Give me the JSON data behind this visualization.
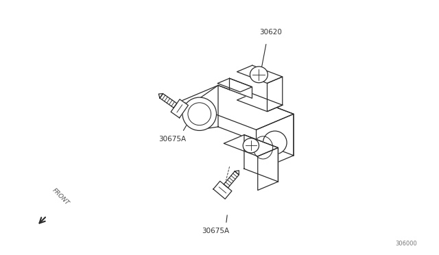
{
  "bg_color": "#ffffff",
  "line_color": "#2a2a2a",
  "label_color": "#333333",
  "part_30620": "30620",
  "part_30675A_left": "30675A",
  "part_30675A_bot": "30675A",
  "diagram_code": "306000",
  "front_label": "FRONT"
}
